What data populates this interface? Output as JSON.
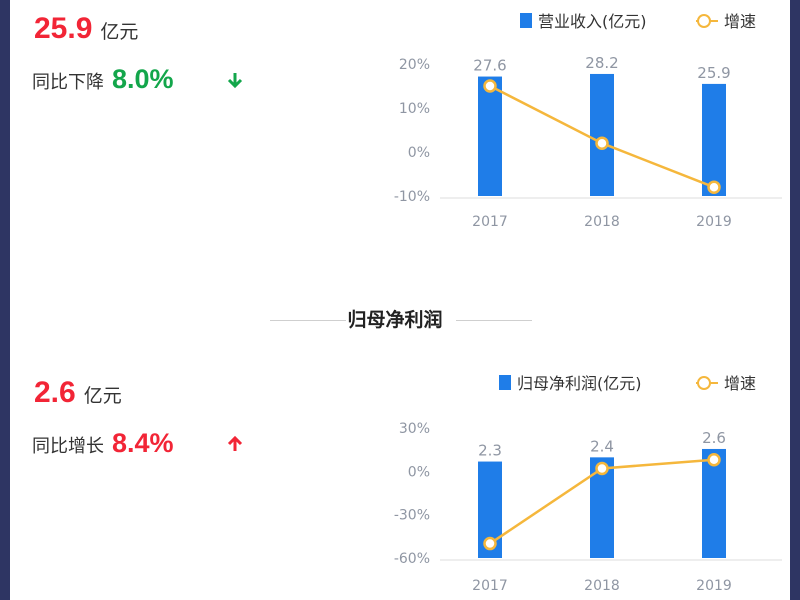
{
  "colors": {
    "bar": "#1f7de8",
    "line": "#f5b73c",
    "red": "#f22536",
    "green": "#13a64b",
    "axis": "#8f96a3"
  },
  "revenue": {
    "value": "25.9",
    "unit": "亿元",
    "change_label": "同比下降",
    "change_value": "8.0%",
    "direction_icon": "arrow-down-icon"
  },
  "profit_section": {
    "title": "归母净利润"
  },
  "profit": {
    "value": "2.6",
    "unit": "亿元",
    "change_label": "同比增长",
    "change_value": "8.4%",
    "direction_icon": "arrow-up-icon"
  },
  "chart_data": [
    {
      "type": "bar",
      "categories": [
        "2017",
        "2018",
        "2019"
      ],
      "series": [
        {
          "name": "营业收入(亿元)",
          "kind": "bar",
          "values": [
            27.6,
            28.2,
            25.9
          ]
        },
        {
          "name": "增速",
          "kind": "line",
          "values": [
            15,
            2,
            -8
          ]
        }
      ],
      "y_tick_labels": [
        "20%",
        "10%",
        "0%",
        "-10%"
      ],
      "y_ticks": [
        20,
        10,
        0,
        -10
      ],
      "ylim": [
        -10,
        20
      ],
      "bar_label_values": [
        "27.6",
        "28.2",
        "25.9"
      ],
      "legend_position": "top-right",
      "grid": false
    },
    {
      "type": "bar",
      "categories": [
        "2017",
        "2018",
        "2019"
      ],
      "series": [
        {
          "name": "归母净利润(亿元)",
          "kind": "bar",
          "values": [
            2.3,
            2.4,
            2.6
          ]
        },
        {
          "name": "增速",
          "kind": "line",
          "values": [
            -50,
            2,
            8
          ]
        }
      ],
      "y_tick_labels": [
        "30%",
        "0%",
        "-30%",
        "-60%"
      ],
      "y_ticks": [
        30,
        0,
        -30,
        -60
      ],
      "ylim": [
        -60,
        30
      ],
      "bar_label_values": [
        "2.3",
        "2.4",
        "2.6"
      ],
      "legend_position": "top-right",
      "grid": false
    }
  ]
}
